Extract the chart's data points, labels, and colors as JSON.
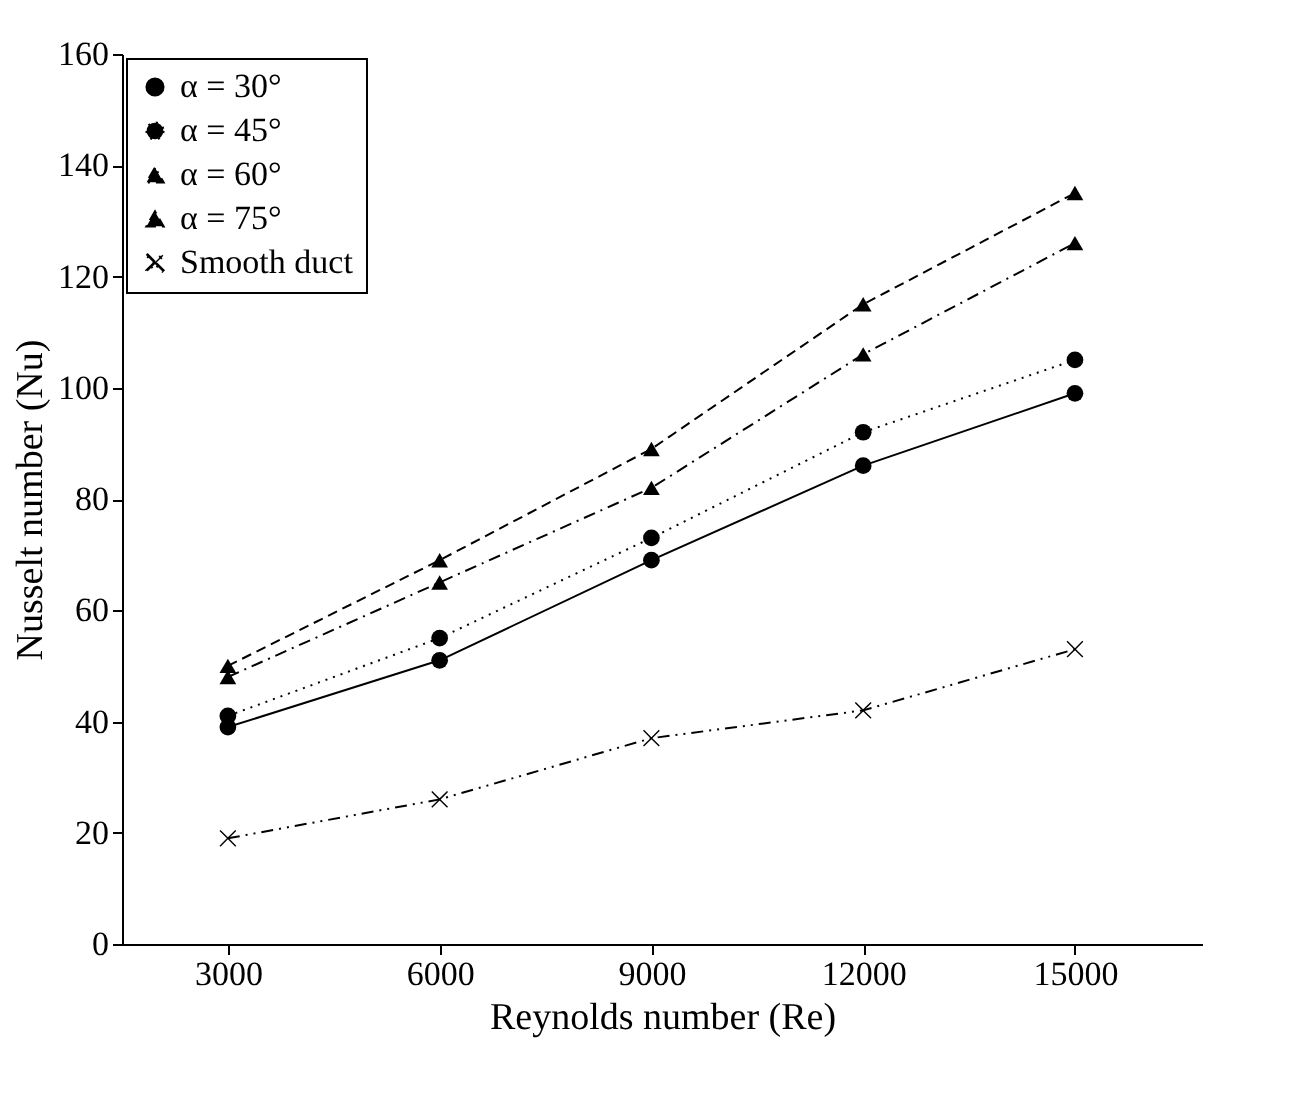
{
  "chart_data": {
    "type": "line",
    "xlabel": "Reynolds number (Re)",
    "ylabel": "Nusselt number  (Nu)",
    "x": [
      3000,
      6000,
      9000,
      12000,
      15000
    ],
    "xlim": [
      1500,
      16800
    ],
    "xticks": [
      3000,
      6000,
      9000,
      12000,
      15000
    ],
    "ylim": [
      0,
      160
    ],
    "yticks": [
      0,
      20,
      40,
      60,
      80,
      100,
      120,
      140,
      160
    ],
    "grid": false,
    "legend": "top left",
    "series": [
      {
        "name": "α = 30°",
        "color": "#000000",
        "marker": "circle",
        "line_style": "solid",
        "values": [
          39,
          51,
          69,
          86,
          99
        ]
      },
      {
        "name": "α = 45°",
        "color": "#000000",
        "marker": "circle",
        "line_style": "dotted",
        "values": [
          41,
          55,
          73,
          92,
          105
        ]
      },
      {
        "name": "α = 60°",
        "color": "#000000",
        "marker": "triangle",
        "line_style": "dashdot",
        "values": [
          48,
          65,
          82,
          106,
          126
        ]
      },
      {
        "name": "α = 75°",
        "color": "#000000",
        "marker": "triangle",
        "line_style": "dashed",
        "values": [
          50,
          69,
          89,
          115,
          135
        ]
      },
      {
        "name": "Smooth duct",
        "color": "#000000",
        "marker": "cross",
        "line_style": "dashdotdot",
        "values": [
          19,
          26,
          37,
          42,
          53
        ]
      }
    ]
  }
}
